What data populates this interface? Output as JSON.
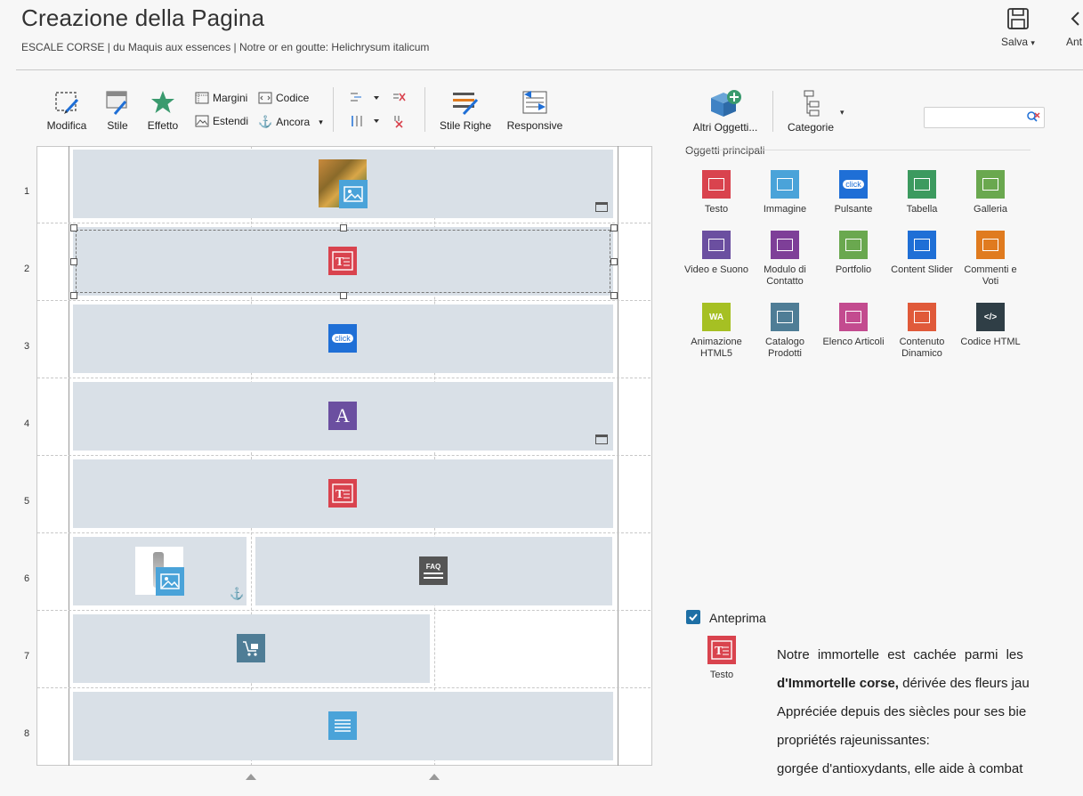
{
  "header": {
    "title": "Creazione della Pagina",
    "subtitle": "ESCALE CORSE | du Maquis aux essences | Notre or en goutte: Helichrysum italicum",
    "save_label": "Salva",
    "save_arrow": "▾",
    "cut_button_label": "Ant"
  },
  "toolbar": {
    "modifica": "Modifica",
    "stile": "Stile",
    "effetto": "Effetto",
    "margini": "Margini",
    "estendi": "Estendi",
    "codice": "Codice",
    "ancora": "Ancora",
    "ancora_arrow": "▾",
    "stile_righe": "Stile Righe",
    "responsive": "Responsive"
  },
  "right_panel": {
    "altri_oggetti": "Altri Oggetti...",
    "categorie": "Categorie",
    "categorie_arrow": "▾",
    "section_title": "Oggetti principali",
    "objects": [
      {
        "label": "Testo",
        "color": "#d9434e",
        "icon": "text-icon"
      },
      {
        "label": "Immagine",
        "color": "#4aa3d9",
        "icon": "image-icon"
      },
      {
        "label": "Pulsante",
        "color": "#1f6fd6",
        "icon": "button-icon",
        "badge": "click"
      },
      {
        "label": "Tabella",
        "color": "#3c9a5f",
        "icon": "table-icon"
      },
      {
        "label": "Galleria",
        "color": "#6aa84f",
        "icon": "gallery-icon"
      },
      {
        "label": "Video e Suono",
        "color": "#6b4fa0",
        "icon": "video-icon"
      },
      {
        "label": "Modulo di Contatto",
        "color": "#7e3f98",
        "icon": "contact-form-icon"
      },
      {
        "label": "Portfolio",
        "color": "#6aa84f",
        "icon": "portfolio-icon"
      },
      {
        "label": "Content Slider",
        "color": "#1f6fd6",
        "icon": "content-slider-icon"
      },
      {
        "label": "Commenti e Voti",
        "color": "#e07b1f",
        "icon": "comments-icon"
      },
      {
        "label": "Animazione HTML5",
        "color": "#a6c023",
        "icon": "html5-animation-icon",
        "badge": "WA"
      },
      {
        "label": "Catalogo Prodotti",
        "color": "#4f7d96",
        "icon": "product-catalog-icon"
      },
      {
        "label": "Elenco Articoli",
        "color": "#c34b8f",
        "icon": "article-list-icon"
      },
      {
        "label": "Contenuto Dinamico",
        "color": "#e05a3a",
        "icon": "dynamic-content-icon"
      },
      {
        "label": "Codice HTML",
        "color": "#2f3e46",
        "icon": "html-code-icon",
        "badge": "</>"
      }
    ]
  },
  "grid": {
    "row_numbers": [
      "1",
      "2",
      "3",
      "4",
      "5",
      "6",
      "7",
      "8"
    ],
    "row_objects": [
      {
        "icon": "image-icon",
        "color": "#4aa3d9"
      },
      {
        "icon": "text-icon",
        "color": "#d9434e"
      },
      {
        "icon": "button-icon",
        "color": "#1f6fd6",
        "badge": "click"
      },
      {
        "icon": "font-icon",
        "color": "#6b4fa0",
        "badge": "A"
      },
      {
        "icon": "text-icon",
        "color": "#d9434e"
      },
      {
        "icon": "faq-icon",
        "color": "#555555",
        "badge": "FAQ"
      },
      {
        "icon": "product-catalog-icon",
        "color": "#4f7d96"
      },
      {
        "icon": "list-icon",
        "color": "#4aa3d9"
      }
    ],
    "anchor_symbol": "⚓"
  },
  "preview": {
    "checkbox_label": "Anteprima",
    "checked": true,
    "object_label": "Testo",
    "lines": [
      {
        "plain": "Notre immortelle est cachée parmi les",
        "bold": ""
      },
      {
        "bold": "d'Immortelle corse,",
        "plain": " dérivée des fleurs jau"
      },
      {
        "plain": "Appréciée depuis des siècles pour ses bie",
        "bold": ""
      },
      {
        "plain": "propriétés rajeunissantes:",
        "bold": ""
      },
      {
        "plain": "gorgée d'antioxydants, elle aide à combat",
        "bold": ""
      }
    ]
  },
  "colors": {
    "accent": "#1f6fd6",
    "cell_bg": "#d9e0e7",
    "checkbox": "#1d6fa5"
  }
}
